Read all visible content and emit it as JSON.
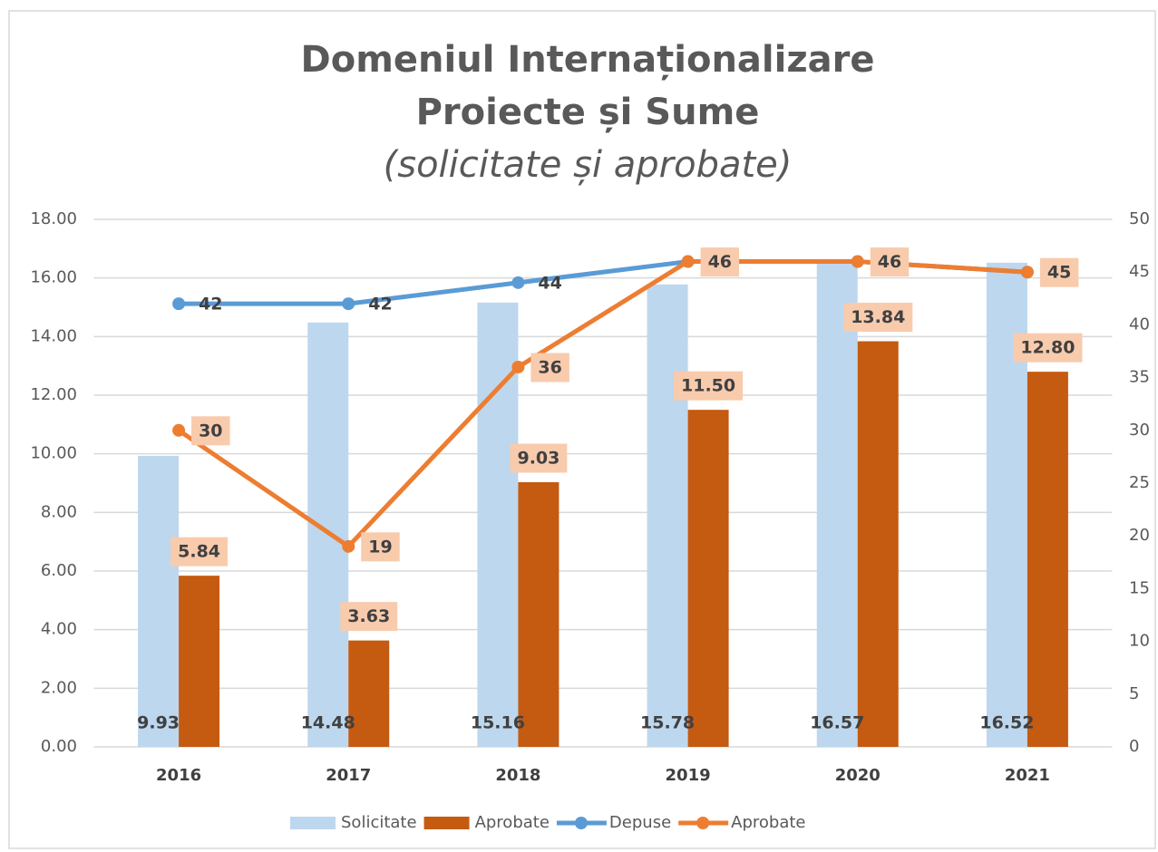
{
  "chart_data": {
    "type": "bar_line",
    "title": [
      "Domeniul Internaționalizare",
      "Proiecte și Sume"
    ],
    "subtitle": "(solicitate și aprobate)",
    "categories": [
      "2016",
      "2017",
      "2018",
      "2019",
      "2020",
      "2021"
    ],
    "series": [
      {
        "name": "Solicitate",
        "type": "bar",
        "color": "#bdd7ee",
        "values": [
          9.93,
          14.48,
          15.16,
          15.78,
          16.57,
          16.52
        ]
      },
      {
        "name": "Aprobate",
        "type": "bar",
        "color": "#c55a11",
        "values": [
          5.84,
          3.63,
          9.03,
          11.5,
          13.84,
          12.8
        ],
        "value_labels": [
          "5.84",
          "3.63",
          "9.03",
          "11.50",
          "13.84",
          "12.80"
        ]
      },
      {
        "name": "Depuse",
        "type": "line",
        "axis": "y2",
        "color": "#5b9bd5",
        "values": [
          42,
          42,
          44,
          46,
          46,
          45
        ]
      },
      {
        "name": "Aprobate",
        "type": "line",
        "axis": "y2",
        "color": "#ed7d31",
        "values": [
          30,
          19,
          36,
          46,
          46,
          45
        ]
      }
    ],
    "ylim": [
      0,
      18
    ],
    "yticks": [
      {
        "value": 0,
        "label": "0.00"
      },
      {
        "value": 2,
        "label": "2.00"
      },
      {
        "value": 4,
        "label": "4.00"
      },
      {
        "value": 6,
        "label": "6.00"
      },
      {
        "value": 8,
        "label": "8.00"
      },
      {
        "value": 10,
        "label": "10.00"
      },
      {
        "value": 12,
        "label": "12.00"
      },
      {
        "value": 14,
        "label": "14.00"
      },
      {
        "value": 16,
        "label": "16.00"
      },
      {
        "value": 18,
        "label": "18.00"
      }
    ],
    "y2lim": [
      0,
      50
    ],
    "y2ticks": [
      0,
      5,
      10,
      15,
      20,
      25,
      30,
      35,
      40,
      45,
      50
    ],
    "grid": true,
    "legend": "bottom"
  }
}
